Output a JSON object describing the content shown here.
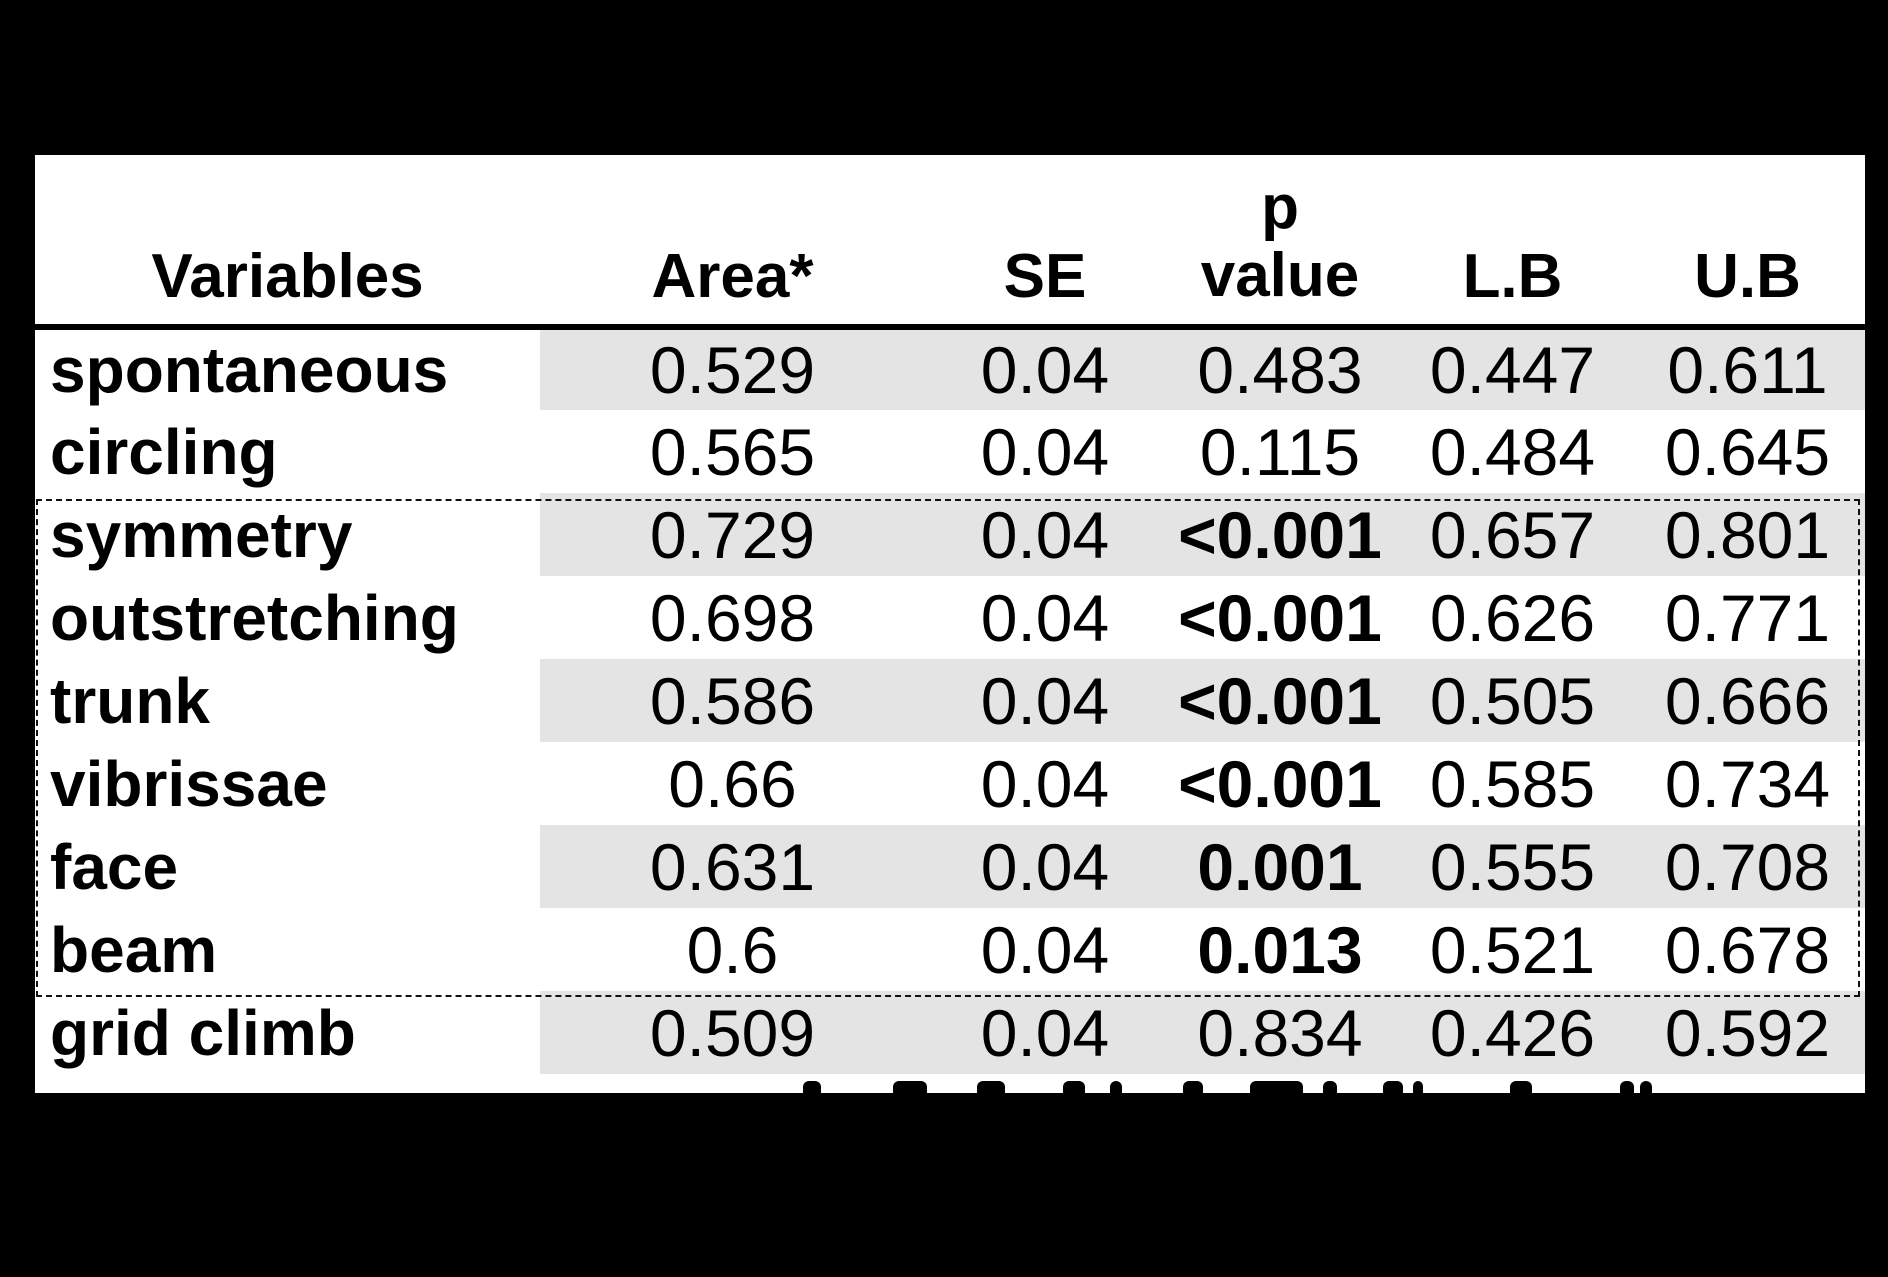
{
  "table": {
    "headers": {
      "variables": "Variables",
      "area": "Area*",
      "se": "SE",
      "p_line1": "p",
      "p_line2": "value",
      "lb": "L.B",
      "ub": "U.B"
    },
    "rows": [
      {
        "variable": "spontaneous",
        "area": "0.529",
        "se": "0.04",
        "p": "0.483",
        "p_bold": false,
        "lb": "0.447",
        "ub": "0.611"
      },
      {
        "variable": "circling",
        "area": "0.565",
        "se": "0.04",
        "p": "0.115",
        "p_bold": false,
        "lb": "0.484",
        "ub": "0.645"
      },
      {
        "variable": "symmetry",
        "area": "0.729",
        "se": "0.04",
        "p": "<0.001",
        "p_bold": true,
        "lb": "0.657",
        "ub": "0.801"
      },
      {
        "variable": "outstretching",
        "area": "0.698",
        "se": "0.04",
        "p": "<0.001",
        "p_bold": true,
        "lb": "0.626",
        "ub": "0.771"
      },
      {
        "variable": "trunk",
        "area": "0.586",
        "se": "0.04",
        "p": "<0.001",
        "p_bold": true,
        "lb": "0.505",
        "ub": "0.666"
      },
      {
        "variable": "vibrissae",
        "area": "0.66",
        "se": "0.04",
        "p": "<0.001",
        "p_bold": true,
        "lb": "0.585",
        "ub": "0.734"
      },
      {
        "variable": "face",
        "area": "0.631",
        "se": "0.04",
        "p": "0.001",
        "p_bold": true,
        "lb": "0.555",
        "ub": "0.708"
      },
      {
        "variable": "beam",
        "area": "0.6",
        "se": "0.04",
        "p": "0.013",
        "p_bold": true,
        "lb": "0.521",
        "ub": "0.678"
      },
      {
        "variable": "grid climb",
        "area": "0.509",
        "se": "0.04",
        "p": "0.834",
        "p_bold": false,
        "lb": "0.426",
        "ub": "0.592"
      }
    ],
    "highlighted_rows": [
      "symmetry",
      "outstretching",
      "trunk",
      "vibrissae",
      "face",
      "beam"
    ]
  },
  "colors": {
    "background": "#000000",
    "table_bg": "#ffffff",
    "row_shade": "#e4e4e4",
    "text": "#000000"
  }
}
